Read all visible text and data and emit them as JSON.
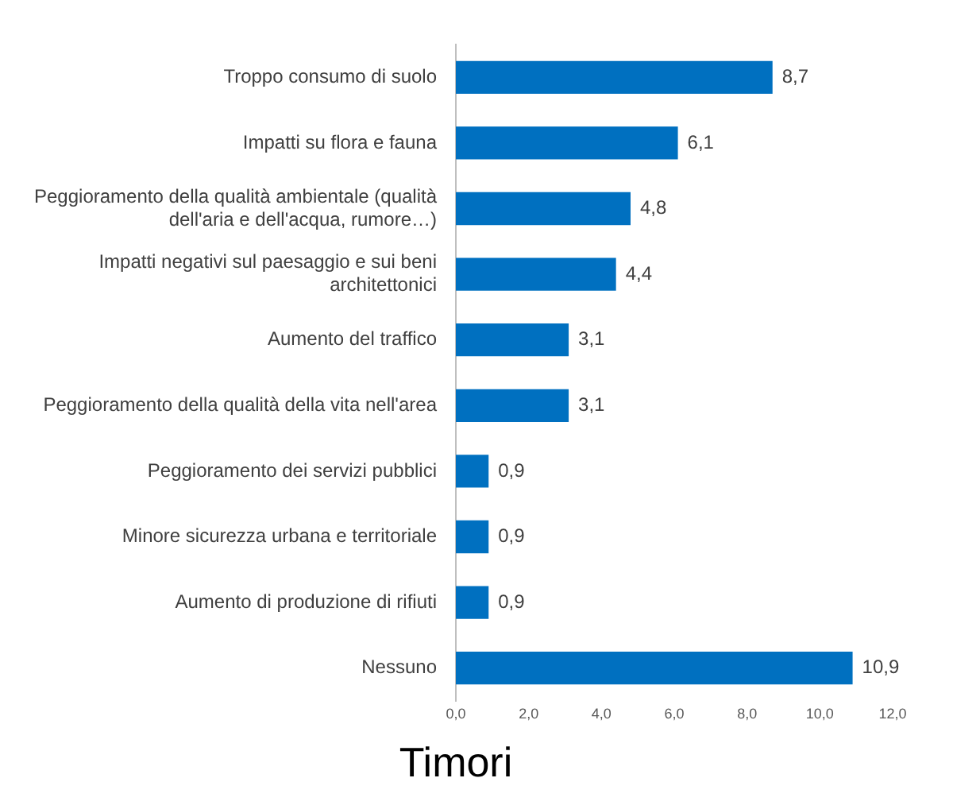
{
  "chart_data": {
    "type": "bar",
    "orientation": "horizontal",
    "title": "Timori",
    "categories": [
      "Troppo consumo di suolo",
      "Impatti su flora e fauna",
      "Peggioramento della qualità ambientale (qualità dell'aria e dell'acqua, rumore…)",
      "Impatti negativi sul paesaggio e sui beni architettonici",
      "Aumento del traffico",
      "Peggioramento della qualità della vita nell'area",
      "Peggioramento dei servizi pubblici",
      "Minore sicurezza urbana e territoriale",
      "Aumento di produzione di rifiuti",
      "Nessuno"
    ],
    "values": [
      8.7,
      6.1,
      4.8,
      4.4,
      3.1,
      3.1,
      0.9,
      0.9,
      0.9,
      10.9
    ],
    "value_labels": [
      "8,7",
      "6,1",
      "4,8",
      "4,4",
      "3,1",
      "3,1",
      "0,9",
      "0,9",
      "0,9",
      "10,9"
    ],
    "color": "#0070c0",
    "xlim": [
      0,
      12
    ],
    "xticks": [
      {
        "value": 0,
        "label": "0,0"
      },
      {
        "value": 2,
        "label": "2,0"
      },
      {
        "value": 4,
        "label": "4,0"
      },
      {
        "value": 6,
        "label": "6,0"
      },
      {
        "value": 8,
        "label": "8,0"
      },
      {
        "value": 10,
        "label": "10,0"
      },
      {
        "value": 12,
        "label": "12,0"
      }
    ],
    "grid": false,
    "legend": false
  }
}
